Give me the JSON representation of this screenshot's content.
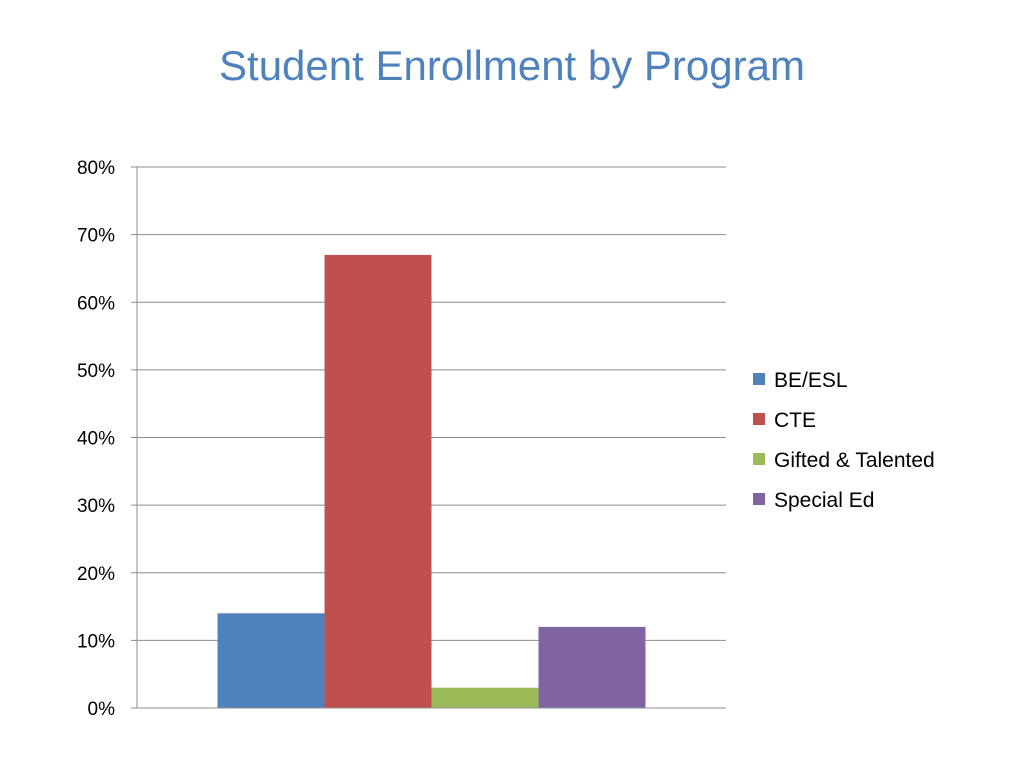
{
  "chart_data": {
    "type": "bar",
    "title": "Student Enrollment by Program",
    "xlabel": "",
    "ylabel": "",
    "ylim": [
      0,
      80
    ],
    "y_ticks": [
      "0%",
      "10%",
      "20%",
      "30%",
      "40%",
      "50%",
      "60%",
      "70%",
      "80%"
    ],
    "categories": [
      ""
    ],
    "grid": true,
    "legend_position": "right",
    "series": [
      {
        "name": "BE/ESL",
        "values": [
          14
        ],
        "color": "#4f81bd"
      },
      {
        "name": "CTE",
        "values": [
          67
        ],
        "color": "#c0504d"
      },
      {
        "name": "Gifted & Talented",
        "values": [
          3
        ],
        "color": "#9bbb59"
      },
      {
        "name": "Special Ed",
        "values": [
          12
        ],
        "color": "#8064a2"
      }
    ]
  }
}
